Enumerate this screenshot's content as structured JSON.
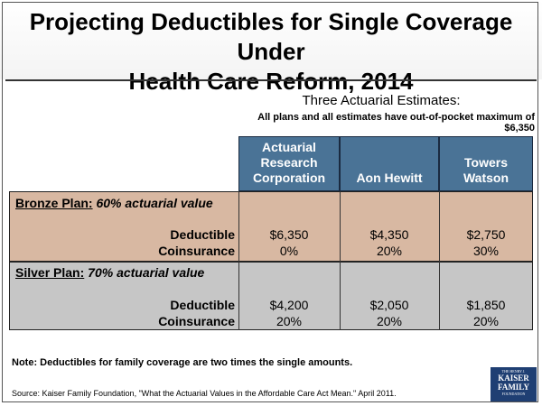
{
  "title": {
    "line1": "Projecting Deductibles for Single Coverage Under",
    "line2": "Health Care Reform, 2014"
  },
  "subtitle": "Three Actuarial Estimates:",
  "top_note": "All plans and all estimates have out-of-pocket maximum of $6,350",
  "columns": [
    {
      "line1": "Actuarial",
      "line2": "Research",
      "line3": "Corporation"
    },
    {
      "line1": "",
      "line2": "",
      "line3": "Aon Hewitt"
    },
    {
      "line1": "",
      "line2": "Towers",
      "line3": "Watson"
    }
  ],
  "plans": [
    {
      "name": "Bronze Plan:",
      "detail": "60% actuarial value",
      "deductible_label": "Deductible",
      "coinsurance_label": "Coinsurance",
      "deductibles": [
        "$6,350",
        "$4,350",
        "$2,750"
      ],
      "coinsurance": [
        "0%",
        "20%",
        "30%"
      ]
    },
    {
      "name": "Silver Plan:",
      "detail": "70% actuarial value",
      "deductible_label": "Deductible",
      "coinsurance_label": "Coinsurance",
      "deductibles": [
        "$4,200",
        "$2,050",
        "$1,850"
      ],
      "coinsurance": [
        "20%",
        "20%",
        "20%"
      ]
    }
  ],
  "footnote": "Note: Deductibles for family coverage are two times the single amounts.",
  "source": "Source: Kaiser Family Foundation, \"What the Actuarial Values in the Affordable Care Act Mean.\" April 2011.",
  "logo": {
    "line1": "THE HENRY J.",
    "line2": "KAISER",
    "line3": "FAMILY",
    "line4": "FOUNDATION"
  },
  "colors": {
    "header": "#4a7396",
    "bronze": "#d8b8a2",
    "silver": "#c6c6c6",
    "logo": "#1f3f73"
  }
}
